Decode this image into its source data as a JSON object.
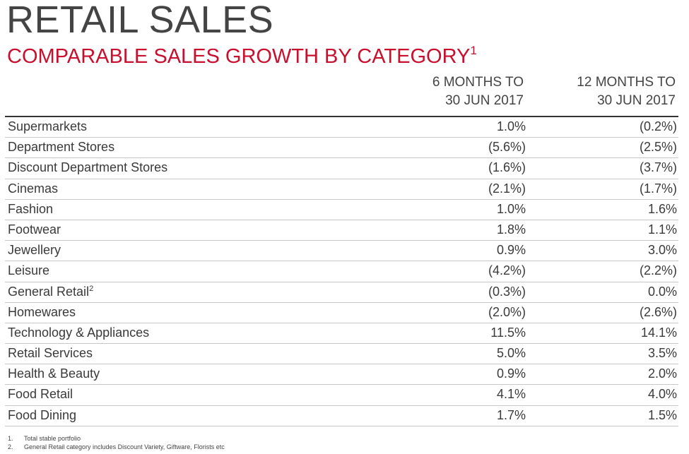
{
  "title": "RETAIL SALES",
  "subtitle": "COMPARABLE SALES GROWTH BY CATEGORY",
  "subtitle_sup": "1",
  "columns": [
    {
      "line1": "6 MONTHS TO",
      "line2": "30 JUN 2017"
    },
    {
      "line1": "12 MONTHS TO",
      "line2": "30 JUN 2017"
    }
  ],
  "rows": [
    {
      "label": "Supermarkets",
      "sup": "",
      "v1": "1.0%",
      "v2": "(0.2%)"
    },
    {
      "label": "Department Stores",
      "sup": "",
      "v1": "(5.6%)",
      "v2": "(2.5%)"
    },
    {
      "label": "Discount Department Stores",
      "sup": "",
      "v1": "(1.6%)",
      "v2": "(3.7%)"
    },
    {
      "label": "Cinemas",
      "sup": "",
      "v1": "(2.1%)",
      "v2": "(1.7%)"
    },
    {
      "label": "Fashion",
      "sup": "",
      "v1": "1.0%",
      "v2": "1.6%"
    },
    {
      "label": "Footwear",
      "sup": "",
      "v1": "1.8%",
      "v2": "1.1%"
    },
    {
      "label": "Jewellery",
      "sup": "",
      "v1": "0.9%",
      "v2": "3.0%"
    },
    {
      "label": "Leisure",
      "sup": "",
      "v1": "(4.2%)",
      "v2": "(2.2%)"
    },
    {
      "label": "General Retail",
      "sup": "2",
      "v1": "(0.3%)",
      "v2": "0.0%"
    },
    {
      "label": "Homewares",
      "sup": "",
      "v1": "(2.0%)",
      "v2": "(2.6%)"
    },
    {
      "label": "Technology & Appliances",
      "sup": "",
      "v1": "11.5%",
      "v2": "14.1%"
    },
    {
      "label": "Retail Services",
      "sup": "",
      "v1": "5.0%",
      "v2": "3.5%"
    },
    {
      "label": "Health & Beauty",
      "sup": "",
      "v1": "0.9%",
      "v2": "2.0%"
    },
    {
      "label": "Food Retail",
      "sup": "",
      "v1": "4.1%",
      "v2": "4.0%"
    },
    {
      "label": "Food Dining",
      "sup": "",
      "v1": "1.7%",
      "v2": "1.5%"
    }
  ],
  "footnotes": [
    {
      "num": "1.",
      "text": "Total stable portfolio"
    },
    {
      "num": "2.",
      "text": "General Retail category includes Discount Variety, Giftware, Florists etc"
    }
  ],
  "colors": {
    "accent": "#c8102e",
    "text": "#3a3a3a",
    "rule": "#333333",
    "divider": "#c8c8c8"
  }
}
